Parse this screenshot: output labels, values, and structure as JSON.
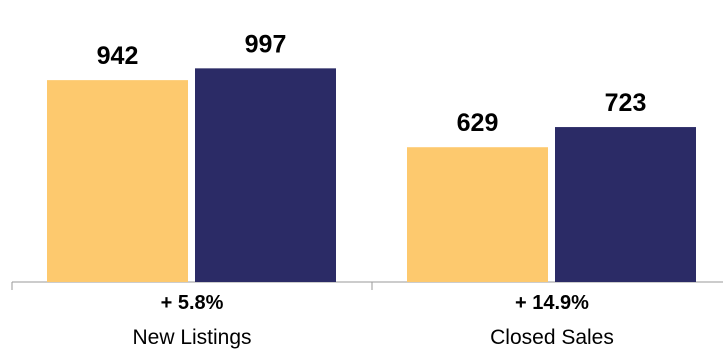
{
  "chart_data": {
    "type": "bar",
    "categories": [
      "New Listings",
      "Closed Sales"
    ],
    "series": [
      {
        "values": [
          942,
          997
        ],
        "color": "#FDC96E"
      },
      {
        "values": [
          629,
          723
        ],
        "color": "#2B2B66"
      }
    ],
    "groups": [
      {
        "label": "New Listings",
        "change": "+ 5.8%",
        "values": [
          942,
          997
        ]
      },
      {
        "label": "Closed Sales",
        "change": "+ 14.9%",
        "values": [
          629,
          723
        ]
      }
    ],
    "colors": [
      "#FDC96E",
      "#2B2B66"
    ],
    "ylim": [
      0,
      1180
    ],
    "grid": false,
    "title": "",
    "xlabel": "",
    "ylabel": ""
  }
}
